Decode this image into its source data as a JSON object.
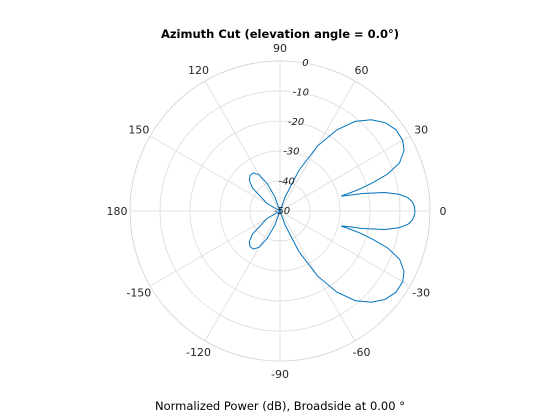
{
  "chart_data": {
    "type": "line",
    "coordinate_system": "polar",
    "title": "Azimuth Cut (elevation angle = 0.0°)",
    "xlabel": "Normalized Power (dB), Broadside at 0.00 °",
    "angle_ticks": [
      "90",
      "60",
      "30",
      "0",
      "-30",
      "-60",
      "-90",
      "-120",
      "-150",
      "180",
      "150",
      "120"
    ],
    "angle_tick_values_deg": [
      90,
      60,
      30,
      0,
      -30,
      -60,
      -90,
      -120,
      -150,
      180,
      150,
      120
    ],
    "radial_ticks": [
      "0",
      "-10",
      "-20",
      "-30",
      "-40",
      "-50"
    ],
    "radial_tick_values_db": [
      0,
      -10,
      -20,
      -30,
      -40,
      -50
    ],
    "radial_range_db": [
      -50,
      0
    ],
    "grid": true,
    "series": [
      {
        "color": "#0072BD",
        "x": [
          -90,
          -80,
          -70,
          -65,
          -60,
          -55,
          -50,
          -45,
          -40,
          -35,
          -30,
          -26,
          -22,
          -19,
          -17,
          -15.5,
          -14.5,
          -13.8,
          -13,
          -12,
          -10,
          -8,
          -6,
          -4,
          -2,
          0,
          2,
          4,
          6,
          8,
          10,
          12,
          13,
          13.8,
          14.5,
          15.5,
          17,
          19,
          22,
          26,
          30,
          35,
          40,
          45,
          50,
          55,
          60,
          65,
          70,
          80,
          90,
          100,
          110,
          115,
          120,
          125,
          130,
          135,
          140,
          150,
          160,
          170,
          180,
          -170,
          -160,
          -150,
          -140,
          -135,
          -130,
          -125,
          -120,
          -115,
          -110,
          -100,
          -90
        ],
        "y": [
          -50,
          -50,
          -45,
          -35,
          -25,
          -17,
          -11,
          -7,
          -4.2,
          -2.8,
          -2.8,
          -4,
          -7,
          -12,
          -17.5,
          -22,
          -26,
          -29,
          -27,
          -22,
          -14.5,
          -10,
          -7.2,
          -5.8,
          -5.2,
          -5,
          -5.2,
          -5.8,
          -7.2,
          -10,
          -14.5,
          -22,
          -27,
          -29,
          -26,
          -22,
          -17.5,
          -12,
          -7,
          -4,
          -2.8,
          -2.8,
          -4.2,
          -7,
          -11,
          -17,
          -25,
          -35,
          -45,
          -50,
          -50,
          -50,
          -45,
          -40,
          -36,
          -34.5,
          -34.5,
          -35.5,
          -38,
          -45,
          -50,
          -50,
          -50,
          -50,
          -50,
          -45,
          -38,
          -35.5,
          -34.5,
          -34.5,
          -36,
          -40,
          -45,
          -50,
          -50
        ]
      }
    ]
  }
}
